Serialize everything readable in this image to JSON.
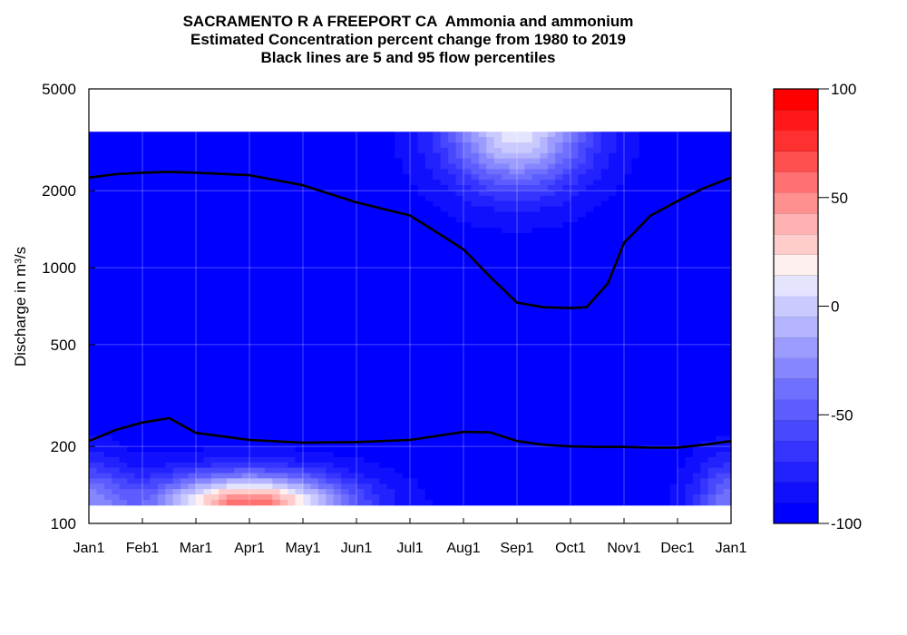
{
  "chart_data": {
    "type": "heatmap",
    "title_lines": [
      "SACRAMENTO R A FREEPORT CA  Ammonia and ammonium",
      "Estimated Concentration percent change from 1980 to 2019",
      "Black lines are 5 and 95 flow percentiles"
    ],
    "ylabel": "Discharge in m³/s",
    "y_scale": "log",
    "ylim": [
      100,
      5000
    ],
    "y_ticks": [
      "5000",
      "2000",
      "1000",
      "500",
      "200",
      "100"
    ],
    "x_ticks": [
      "Jan1",
      "Feb1",
      "Mar1",
      "Apr1",
      "May1",
      "Jun1",
      "Jul1",
      "Aug1",
      "Sep1",
      "Oct1",
      "Nov1",
      "Dec1",
      "Jan1"
    ],
    "surface_discharge_range": [
      118,
      3400
    ],
    "background_value": -95,
    "features": [
      {
        "month": 3.0,
        "discharge": 118,
        "value": 60,
        "spread_month": 1.8,
        "spread_log": 0.12
      },
      {
        "month": 8.0,
        "discharge": 3400,
        "value": 10,
        "spread_month": 1.3,
        "spread_log": 0.22
      },
      {
        "month": 0.0,
        "discharge": 118,
        "value": -35,
        "spread_month": 0.7,
        "spread_log": 0.17
      },
      {
        "month": 12.0,
        "discharge": 118,
        "value": -35,
        "spread_month": 0.7,
        "spread_log": 0.17
      }
    ],
    "series": [
      {
        "label": "95 percentile",
        "x": [
          0,
          0.5,
          1,
          1.5,
          2,
          3,
          4,
          5,
          6,
          7,
          7.5,
          8,
          8.5,
          9,
          9.3,
          9.7,
          10,
          10.5,
          11,
          11.5,
          12
        ],
        "y": [
          2250,
          2320,
          2350,
          2370,
          2350,
          2300,
          2100,
          1800,
          1600,
          1180,
          920,
          730,
          700,
          695,
          700,
          870,
          1250,
          1600,
          1820,
          2050,
          2250
        ]
      },
      {
        "label": "5 percentile",
        "x": [
          0,
          0.5,
          1,
          1.5,
          2,
          3,
          4,
          5,
          6,
          7,
          7.5,
          8,
          8.5,
          9,
          9.5,
          10,
          10.5,
          11,
          11.5,
          12
        ],
        "y": [
          210,
          232,
          248,
          258,
          226,
          212,
          207,
          208,
          212,
          228,
          227,
          210,
          203,
          200,
          199,
          199,
          198,
          198,
          203,
          210
        ]
      }
    ],
    "colorbar": {
      "range": [
        -100,
        100
      ],
      "ticks": [
        "100",
        "50",
        "0",
        "-50",
        "-100"
      ],
      "bands": [
        "#0000ff",
        "#1010ff",
        "#2222ff",
        "#3535ff",
        "#4848ff",
        "#5c5cff",
        "#7070ff",
        "#8686ff",
        "#9c9cff",
        "#b4b4ff",
        "#cacaff",
        "#e4e4ff",
        "#fff0f0",
        "#ffcccc",
        "#ffb0b0",
        "#ff9090",
        "#ff7070",
        "#ff5050",
        "#ff3030",
        "#ff1818",
        "#ff0000"
      ]
    }
  }
}
